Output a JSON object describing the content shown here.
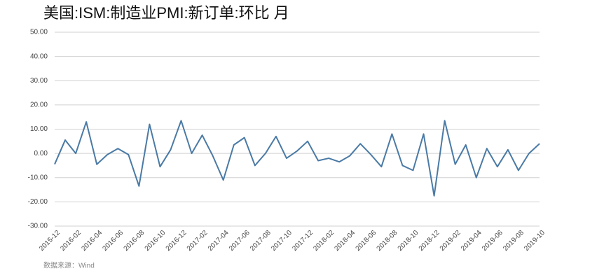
{
  "chart_data": {
    "type": "line",
    "title": "美国:ISM:制造业PMI:新订单:环比 月",
    "source": "数据来源：Wind",
    "categories": [
      "2015-12",
      null,
      "2016-02",
      null,
      "2016-04",
      null,
      "2016-06",
      null,
      "2016-08",
      null,
      "2016-10",
      null,
      "2016-12",
      null,
      "2017-02",
      null,
      "2017-04",
      null,
      "2017-06",
      null,
      "2017-08",
      null,
      "2017-10",
      null,
      "2017-12",
      null,
      "2018-02",
      null,
      "2018-04",
      null,
      "2018-06",
      null,
      "2018-08",
      null,
      "2018-10",
      null,
      "2018-12",
      null,
      "2019-02",
      null,
      "2019-04",
      null,
      "2019-06",
      null,
      "2019-08",
      null,
      "2019-10"
    ],
    "series": [
      {
        "name": "新订单环比",
        "color": "#4a7aa5",
        "values": [
          -4.5,
          5.5,
          0,
          13,
          -4.5,
          -0.5,
          2,
          -0.5,
          -13.5,
          12,
          -5.5,
          1.5,
          13.5,
          0,
          7.5,
          -1,
          -11,
          3.5,
          6.5,
          -5,
          0,
          7,
          -2,
          1,
          5,
          -3,
          -2,
          -3.5,
          -1,
          4,
          -0.5,
          -5.5,
          8,
          -5,
          -7,
          8,
          -17.5,
          13.5,
          -4.5,
          3.5,
          -10,
          2,
          -5.5,
          1.5,
          -7,
          0,
          4
        ]
      }
    ],
    "ylim": [
      -30,
      50
    ],
    "yticks": [
      {
        "value": -30,
        "label": "-30.00"
      },
      {
        "value": -20,
        "label": "-20.00"
      },
      {
        "value": -10,
        "label": "-10.00"
      },
      {
        "value": 0,
        "label": "0.00"
      },
      {
        "value": 10,
        "label": "10.00"
      },
      {
        "value": 20,
        "label": "20.00"
      },
      {
        "value": 30,
        "label": "30.00"
      },
      {
        "value": 40,
        "label": "40.00"
      },
      {
        "value": 50,
        "label": "50.00"
      }
    ],
    "grid": true
  }
}
